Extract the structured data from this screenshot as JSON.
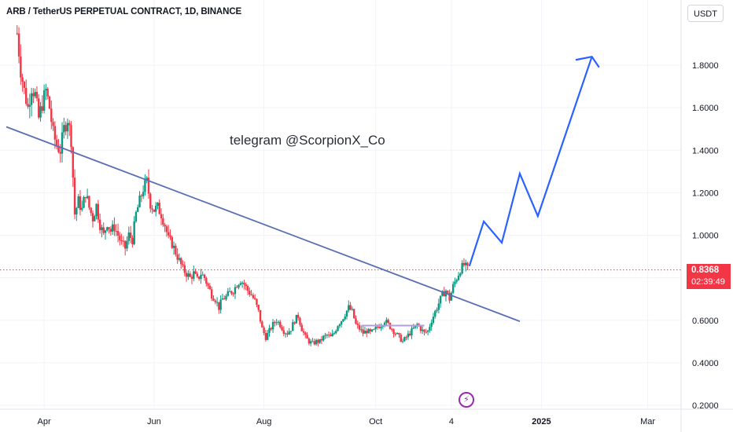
{
  "header": {
    "symbol_title": "ARB / TetherUS PERPETUAL CONTRACT, 1D, BINANCE",
    "currency": "USDT"
  },
  "watermark": "telegram @ScorpionX_Co",
  "price_label": {
    "price": "0.8368",
    "countdown": "02:39:49"
  },
  "colors": {
    "up": "#089981",
    "down": "#f23645",
    "trendline": "#5b6fb5",
    "projection": "#2962ff",
    "price_line": "#f23645",
    "grid": "#f0f3fa",
    "event_icon": "#9c27b0"
  },
  "event_icon": "lightning-icon",
  "chart_data": {
    "type": "candlestick",
    "y_axis": {
      "range": [
        0.16,
        2.08
      ],
      "ticks": [
        0.2,
        0.4,
        0.6,
        0.8,
        1.0,
        1.2,
        1.4,
        1.6,
        1.8
      ],
      "tick_labels": [
        "0.2000",
        "0.4000",
        "0.6000",
        "",
        "1.0000",
        "1.2000",
        "1.4000",
        "1.6000",
        "1.8000"
      ]
    },
    "x_axis": {
      "ticks": [
        {
          "label": "Apr",
          "day": 15,
          "bold": false
        },
        {
          "label": "Jun",
          "day": 76,
          "bold": false
        },
        {
          "label": "Aug",
          "day": 137,
          "bold": false
        },
        {
          "label": "Oct",
          "day": 199,
          "bold": false
        },
        {
          "label": "4",
          "day": 241,
          "bold": false
        },
        {
          "label": "2025",
          "day": 291,
          "bold": true
        },
        {
          "label": "Mar",
          "day": 350,
          "bold": false
        }
      ],
      "day_range": [
        -6,
        372
      ]
    },
    "price_series": [
      [
        0,
        1.95
      ],
      [
        2,
        1.78
      ],
      [
        4,
        1.68
      ],
      [
        6,
        1.6
      ],
      [
        8,
        1.7
      ],
      [
        10,
        1.66
      ],
      [
        12,
        1.55
      ],
      [
        14,
        1.62
      ],
      [
        16,
        1.68
      ],
      [
        18,
        1.6
      ],
      [
        20,
        1.48
      ],
      [
        22,
        1.42
      ],
      [
        24,
        1.4
      ],
      [
        26,
        1.5
      ],
      [
        28,
        1.55
      ],
      [
        30,
        1.45
      ],
      [
        32,
        1.1
      ],
      [
        34,
        1.16
      ],
      [
        36,
        1.12
      ],
      [
        38,
        1.2
      ],
      [
        40,
        1.13
      ],
      [
        42,
        1.08
      ],
      [
        44,
        1.14
      ],
      [
        46,
        1.05
      ],
      [
        48,
        1.0
      ],
      [
        50,
        1.06
      ],
      [
        52,
        1.02
      ],
      [
        54,
        1.04
      ],
      [
        56,
        1.0
      ],
      [
        58,
        0.96
      ],
      [
        60,
        0.94
      ],
      [
        62,
        1.0
      ],
      [
        64,
        0.98
      ],
      [
        66,
        1.1
      ],
      [
        68,
        1.16
      ],
      [
        70,
        1.22
      ],
      [
        72,
        1.25
      ],
      [
        74,
        1.15
      ],
      [
        76,
        1.12
      ],
      [
        78,
        1.13
      ],
      [
        80,
        1.1
      ],
      [
        82,
        1.05
      ],
      [
        84,
        0.98
      ],
      [
        86,
        0.96
      ],
      [
        88,
        0.92
      ],
      [
        90,
        0.88
      ],
      [
        92,
        0.84
      ],
      [
        94,
        0.82
      ],
      [
        96,
        0.8
      ],
      [
        98,
        0.82
      ],
      [
        100,
        0.79
      ],
      [
        102,
        0.82
      ],
      [
        104,
        0.8
      ],
      [
        106,
        0.76
      ],
      [
        108,
        0.72
      ],
      [
        110,
        0.7
      ],
      [
        112,
        0.66
      ],
      [
        114,
        0.7
      ],
      [
        116,
        0.71
      ],
      [
        118,
        0.73
      ],
      [
        120,
        0.74
      ],
      [
        122,
        0.77
      ],
      [
        124,
        0.79
      ],
      [
        126,
        0.77
      ],
      [
        128,
        0.74
      ],
      [
        130,
        0.72
      ],
      [
        132,
        0.69
      ],
      [
        134,
        0.64
      ],
      [
        136,
        0.56
      ],
      [
        138,
        0.52
      ],
      [
        140,
        0.55
      ],
      [
        142,
        0.58
      ],
      [
        144,
        0.6
      ],
      [
        146,
        0.58
      ],
      [
        148,
        0.55
      ],
      [
        150,
        0.54
      ],
      [
        152,
        0.56
      ],
      [
        154,
        0.6
      ],
      [
        156,
        0.62
      ],
      [
        158,
        0.56
      ],
      [
        160,
        0.52
      ],
      [
        162,
        0.5
      ],
      [
        164,
        0.49
      ],
      [
        166,
        0.5
      ],
      [
        168,
        0.5
      ],
      [
        170,
        0.52
      ],
      [
        172,
        0.53
      ],
      [
        174,
        0.52
      ],
      [
        176,
        0.54
      ],
      [
        178,
        0.58
      ],
      [
        180,
        0.6
      ],
      [
        182,
        0.63
      ],
      [
        184,
        0.66
      ],
      [
        186,
        0.64
      ],
      [
        188,
        0.58
      ],
      [
        190,
        0.56
      ],
      [
        192,
        0.54
      ],
      [
        194,
        0.55
      ],
      [
        196,
        0.54
      ],
      [
        198,
        0.55
      ],
      [
        200,
        0.57
      ],
      [
        202,
        0.58
      ],
      [
        204,
        0.6
      ],
      [
        206,
        0.58
      ],
      [
        208,
        0.56
      ],
      [
        210,
        0.54
      ],
      [
        212,
        0.52
      ],
      [
        214,
        0.5
      ],
      [
        216,
        0.52
      ],
      [
        218,
        0.54
      ],
      [
        220,
        0.56
      ],
      [
        222,
        0.58
      ],
      [
        224,
        0.56
      ],
      [
        226,
        0.54
      ],
      [
        228,
        0.55
      ],
      [
        230,
        0.6
      ],
      [
        232,
        0.64
      ],
      [
        234,
        0.68
      ],
      [
        236,
        0.72
      ],
      [
        238,
        0.74
      ],
      [
        240,
        0.7
      ],
      [
        242,
        0.76
      ],
      [
        244,
        0.8
      ],
      [
        246,
        0.84
      ],
      [
        248,
        0.86
      ],
      [
        250,
        0.84
      ]
    ],
    "trendline": {
      "from": [
        -6,
        1.51
      ],
      "to": [
        279,
        0.595
      ]
    },
    "support_zone": {
      "from": [
        191,
        0.575
      ],
      "to": [
        226,
        0.575
      ]
    },
    "projection_path": [
      [
        251,
        0.855
      ],
      [
        259,
        1.065
      ],
      [
        269,
        0.965
      ],
      [
        279,
        1.29
      ],
      [
        289,
        1.09
      ],
      [
        319,
        1.84
      ]
    ],
    "arrowhead": [
      [
        310,
        1.825
      ],
      [
        319,
        1.84
      ],
      [
        323,
        1.79
      ]
    ],
    "current_price": 0.8368
  }
}
